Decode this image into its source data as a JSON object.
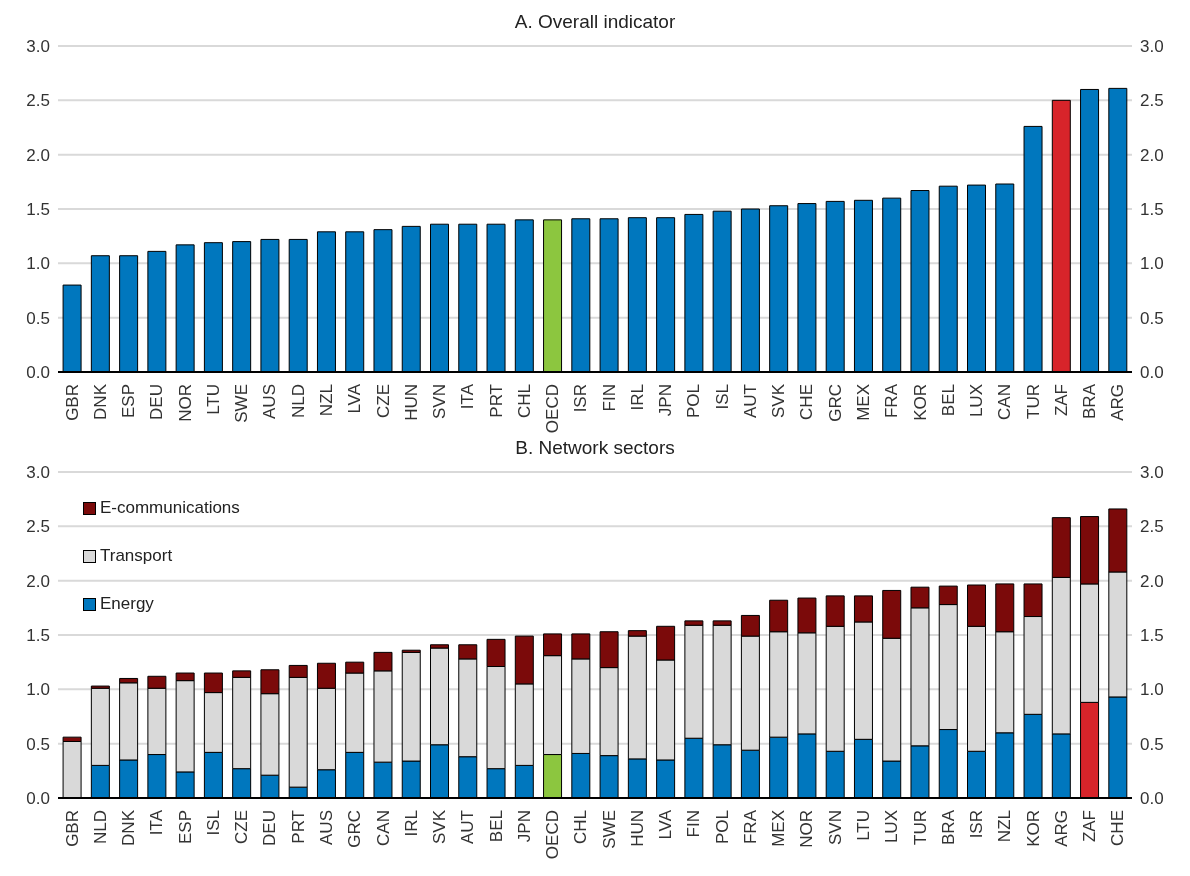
{
  "chart_data": [
    {
      "type": "bar",
      "title": "A. Overall indicator",
      "categories": [
        "GBR",
        "DNK",
        "ESP",
        "DEU",
        "NOR",
        "LTU",
        "SWE",
        "AUS",
        "NLD",
        "NZL",
        "LVA",
        "CZE",
        "HUN",
        "SVN",
        "ITA",
        "PRT",
        "CHL",
        "OECD",
        "ISR",
        "FIN",
        "IRL",
        "JPN",
        "POL",
        "ISL",
        "AUT",
        "SVK",
        "CHE",
        "GRC",
        "MEX",
        "FRA",
        "KOR",
        "BEL",
        "LUX",
        "CAN",
        "TUR",
        "ZAF",
        "BRA",
        "ARG"
      ],
      "values": [
        0.8,
        1.07,
        1.07,
        1.11,
        1.17,
        1.19,
        1.2,
        1.22,
        1.22,
        1.29,
        1.29,
        1.31,
        1.34,
        1.36,
        1.36,
        1.36,
        1.4,
        1.4,
        1.41,
        1.41,
        1.42,
        1.42,
        1.45,
        1.48,
        1.5,
        1.53,
        1.55,
        1.57,
        1.58,
        1.6,
        1.67,
        1.71,
        1.72,
        1.73,
        2.26,
        2.5,
        2.6,
        2.61
      ],
      "yticks": [
        {
          "value": 0,
          "label": "0.0"
        },
        {
          "value": 0.5,
          "label": "0.5"
        },
        {
          "value": 1,
          "label": "1.0"
        },
        {
          "value": 1.5,
          "label": "1.5"
        },
        {
          "value": 2,
          "label": "2.0"
        },
        {
          "value": 2.5,
          "label": "2.5"
        },
        {
          "value": 3,
          "label": "3.0"
        }
      ],
      "y2ticks": [
        {
          "value": 0,
          "label": "0.0"
        },
        {
          "value": 0.5,
          "label": "0.5"
        },
        {
          "value": 1,
          "label": "1.0"
        },
        {
          "value": 1.5,
          "label": "1.5"
        },
        {
          "value": 2,
          "label": "2.0"
        },
        {
          "value": 2.5,
          "label": "2.5"
        },
        {
          "value": 3,
          "label": "3.0"
        }
      ],
      "colors": [
        "#0077be",
        "#0077be",
        "#0077be",
        "#0077be",
        "#0077be",
        "#0077be",
        "#0077be",
        "#0077be",
        "#0077be",
        "#0077be",
        "#0077be",
        "#0077be",
        "#0077be",
        "#0077be",
        "#0077be",
        "#0077be",
        "#0077be",
        "#8cc63f",
        "#0077be",
        "#0077be",
        "#0077be",
        "#0077be",
        "#0077be",
        "#0077be",
        "#0077be",
        "#0077be",
        "#0077be",
        "#0077be",
        "#0077be",
        "#0077be",
        "#0077be",
        "#0077be",
        "#0077be",
        "#0077be",
        "#0077be",
        "#d7242a",
        "#0077be",
        "#0077be"
      ],
      "ylim": [
        0,
        3
      ],
      "y2lim": [
        0,
        3
      ],
      "grid": "y"
    },
    {
      "type": "bar",
      "title": "B. Network sectors",
      "stacked": true,
      "legend": "top left",
      "categories": [
        "GBR",
        "NLD",
        "DNK",
        "ITA",
        "ESP",
        "ISL",
        "CZE",
        "DEU",
        "PRT",
        "AUS",
        "GRC",
        "CAN",
        "IRL",
        "SVK",
        "AUT",
        "BEL",
        "JPN",
        "OECD",
        "CHL",
        "SWE",
        "HUN",
        "LVA",
        "FIN",
        "POL",
        "FRA",
        "MEX",
        "NOR",
        "SVN",
        "LTU",
        "LUX",
        "TUR",
        "BRA",
        "ISR",
        "NZL",
        "KOR",
        "ARG",
        "ZAF",
        "CHE"
      ],
      "series": [
        {
          "name": "Energy",
          "color": "#0077be",
          "colors": [
            "#0077be",
            "#0077be",
            "#0077be",
            "#0077be",
            "#0077be",
            "#0077be",
            "#0077be",
            "#0077be",
            "#0077be",
            "#0077be",
            "#0077be",
            "#0077be",
            "#0077be",
            "#0077be",
            "#0077be",
            "#0077be",
            "#0077be",
            "#8cc63f",
            "#0077be",
            "#0077be",
            "#0077be",
            "#0077be",
            "#0077be",
            "#0077be",
            "#0077be",
            "#0077be",
            "#0077be",
            "#0077be",
            "#0077be",
            "#0077be",
            "#0077be",
            "#0077be",
            "#0077be",
            "#0077be",
            "#0077be",
            "#0077be",
            "#d7242a",
            "#0077be"
          ],
          "values": [
            0,
            0.3,
            0.35,
            0.4,
            0.24,
            0.42,
            0.27,
            0.21,
            0.1,
            0.26,
            0.42,
            0.33,
            0.34,
            0.49,
            0.38,
            0.27,
            0.3,
            0.4,
            0.41,
            0.39,
            0.36,
            0.35,
            0.55,
            0.49,
            0.44,
            0.56,
            0.59,
            0.43,
            0.54,
            0.34,
            0.48,
            0.63,
            0.43,
            0.6,
            0.77,
            0.59,
            0.88,
            0.93
          ]
        },
        {
          "name": "Transport",
          "color": "#d9d9d9",
          "values": [
            0.52,
            0.71,
            0.71,
            0.61,
            0.84,
            0.55,
            0.84,
            0.75,
            1.01,
            0.75,
            0.73,
            0.84,
            1.0,
            0.89,
            0.9,
            0.94,
            0.75,
            0.91,
            0.87,
            0.81,
            1.13,
            0.92,
            1.04,
            1.1,
            1.05,
            0.97,
            0.93,
            1.15,
            1.08,
            1.13,
            1.27,
            1.15,
            1.15,
            0.93,
            0.9,
            1.44,
            1.09,
            1.15
          ]
        },
        {
          "name": "E-communications",
          "color": "#7b0a0a",
          "values": [
            0.04,
            0.02,
            0.04,
            0.11,
            0.07,
            0.18,
            0.06,
            0.22,
            0.11,
            0.23,
            0.1,
            0.17,
            0.02,
            0.03,
            0.13,
            0.25,
            0.44,
            0.2,
            0.23,
            0.33,
            0.05,
            0.31,
            0.04,
            0.04,
            0.19,
            0.29,
            0.32,
            0.28,
            0.24,
            0.44,
            0.19,
            0.17,
            0.38,
            0.44,
            0.3,
            0.55,
            0.62,
            0.58
          ]
        }
      ],
      "yticks": [
        {
          "value": 0,
          "label": "0.0"
        },
        {
          "value": 0.5,
          "label": "0.5"
        },
        {
          "value": 1,
          "label": "1.0"
        },
        {
          "value": 1.5,
          "label": "1.5"
        },
        {
          "value": 2,
          "label": "2.0"
        },
        {
          "value": 2.5,
          "label": "2.5"
        },
        {
          "value": 3,
          "label": "3.0"
        }
      ],
      "y2ticks": [
        {
          "value": 0,
          "label": "0.0"
        },
        {
          "value": 0.5,
          "label": "0.5"
        },
        {
          "value": 1,
          "label": "1.0"
        },
        {
          "value": 1.5,
          "label": "1.5"
        },
        {
          "value": 2,
          "label": "2.0"
        },
        {
          "value": 2.5,
          "label": "2.5"
        },
        {
          "value": 3,
          "label": "3.0"
        }
      ],
      "ylim": [
        0,
        3
      ],
      "y2lim": [
        0,
        3
      ],
      "grid": "y"
    }
  ]
}
